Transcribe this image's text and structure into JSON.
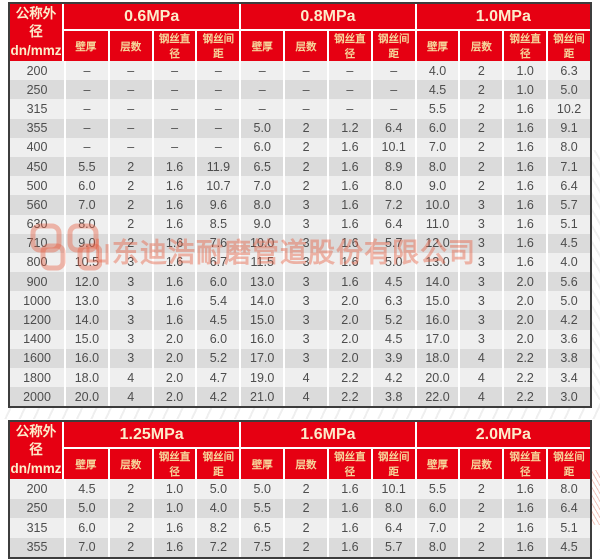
{
  "page": {
    "watermark_text": "山东迪浩耐磨管道股份有限公司",
    "colors": {
      "header_red": "#e60012",
      "header_text_cream": "#fceccb",
      "subheader_text_gold": "#f6d49a",
      "row_light": "#efefef",
      "row_dark": "#dbdbdb",
      "cell_text": "#4d4d4d",
      "watermark_red": "#e85a3c"
    }
  },
  "tables": [
    {
      "corner": {
        "line1": "公称外径",
        "line2": "dn/mmz"
      },
      "groups": [
        {
          "label": "0.6MPa",
          "subcolumns": [
            "壁厚",
            "层数",
            "钢丝直径",
            "钢丝间距"
          ]
        },
        {
          "label": "0.8MPa",
          "subcolumns": [
            "壁厚",
            "层数",
            "钢丝直径",
            "钢丝间距"
          ]
        },
        {
          "label": "1.0MPa",
          "subcolumns": [
            "壁厚",
            "层数",
            "钢丝直径",
            "钢丝间距"
          ]
        }
      ],
      "rows": [
        {
          "dn": "200",
          "values": [
            "–",
            "–",
            "–",
            "–",
            "–",
            "–",
            "–",
            "–",
            "4.0",
            "2",
            "1.0",
            "6.3"
          ]
        },
        {
          "dn": "250",
          "values": [
            "–",
            "–",
            "–",
            "–",
            "–",
            "–",
            "–",
            "–",
            "4.5",
            "2",
            "1.0",
            "5.0"
          ]
        },
        {
          "dn": "315",
          "values": [
            "–",
            "–",
            "–",
            "–",
            "–",
            "–",
            "–",
            "–",
            "5.5",
            "2",
            "1.6",
            "10.2"
          ]
        },
        {
          "dn": "355",
          "values": [
            "–",
            "–",
            "–",
            "–",
            "5.0",
            "2",
            "1.2",
            "6.4",
            "6.0",
            "2",
            "1.6",
            "9.1"
          ]
        },
        {
          "dn": "400",
          "values": [
            "–",
            "–",
            "–",
            "–",
            "6.0",
            "2",
            "1.6",
            "10.1",
            "7.0",
            "2",
            "1.6",
            "8.0"
          ]
        },
        {
          "dn": "450",
          "values": [
            "5.5",
            "2",
            "1.6",
            "11.9",
            "6.5",
            "2",
            "1.6",
            "8.9",
            "8.0",
            "2",
            "1.6",
            "7.1"
          ]
        },
        {
          "dn": "500",
          "values": [
            "6.0",
            "2",
            "1.6",
            "10.7",
            "7.0",
            "2",
            "1.6",
            "8.0",
            "9.0",
            "2",
            "1.6",
            "6.4"
          ]
        },
        {
          "dn": "560",
          "values": [
            "7.0",
            "2",
            "1.6",
            "9.6",
            "8.0",
            "3",
            "1.6",
            "7.2",
            "10.0",
            "3",
            "1.6",
            "5.7"
          ]
        },
        {
          "dn": "630",
          "values": [
            "8.0",
            "2",
            "1.6",
            "8.5",
            "9.0",
            "3",
            "1.6",
            "6.4",
            "11.0",
            "3",
            "1.6",
            "5.1"
          ]
        },
        {
          "dn": "710",
          "values": [
            "9.0",
            "2",
            "1.6",
            "7.6",
            "10.0",
            "3",
            "1.6",
            "5.7",
            "12.0",
            "3",
            "1.6",
            "4.5"
          ]
        },
        {
          "dn": "800",
          "values": [
            "10.5",
            "3",
            "1.6",
            "6.7",
            "11.5",
            "3",
            "1.6",
            "5.0",
            "13.0",
            "3",
            "1.6",
            "4.0"
          ]
        },
        {
          "dn": "900",
          "values": [
            "12.0",
            "3",
            "1.6",
            "6.0",
            "13.0",
            "3",
            "1.6",
            "4.5",
            "14.0",
            "3",
            "2.0",
            "5.6"
          ]
        },
        {
          "dn": "1000",
          "values": [
            "13.0",
            "3",
            "1.6",
            "5.4",
            "14.0",
            "3",
            "2.0",
            "6.3",
            "15.0",
            "3",
            "2.0",
            "5.0"
          ]
        },
        {
          "dn": "1200",
          "values": [
            "14.0",
            "3",
            "1.6",
            "4.5",
            "15.0",
            "3",
            "2.0",
            "5.2",
            "16.0",
            "3",
            "2.0",
            "4.2"
          ]
        },
        {
          "dn": "1400",
          "values": [
            "15.0",
            "3",
            "2.0",
            "6.0",
            "16.0",
            "3",
            "2.0",
            "4.5",
            "17.0",
            "3",
            "2.0",
            "3.6"
          ]
        },
        {
          "dn": "1600",
          "values": [
            "16.0",
            "3",
            "2.0",
            "5.2",
            "17.0",
            "3",
            "2.0",
            "3.9",
            "18.0",
            "4",
            "2.2",
            "3.8"
          ]
        },
        {
          "dn": "1800",
          "values": [
            "18.0",
            "4",
            "2.0",
            "4.7",
            "19.0",
            "4",
            "2.2",
            "4.2",
            "20.0",
            "4",
            "2.2",
            "3.4"
          ]
        },
        {
          "dn": "2000",
          "values": [
            "20.0",
            "4",
            "2.0",
            "4.2",
            "21.0",
            "4",
            "2.2",
            "3.8",
            "22.0",
            "4",
            "2.2",
            "3.0"
          ]
        }
      ]
    },
    {
      "corner": {
        "line1": "公称外径",
        "line2": "dn/mmz"
      },
      "groups": [
        {
          "label": "1.25MPa",
          "subcolumns": [
            "壁厚",
            "层数",
            "钢丝直径",
            "钢丝间距"
          ]
        },
        {
          "label": "1.6MPa",
          "subcolumns": [
            "壁厚",
            "层数",
            "钢丝直径",
            "钢丝间距"
          ]
        },
        {
          "label": "2.0MPa",
          "subcolumns": [
            "壁厚",
            "层数",
            "钢丝直径",
            "钢丝间距"
          ]
        }
      ],
      "rows": [
        {
          "dn": "200",
          "values": [
            "4.5",
            "2",
            "1.0",
            "5.0",
            "5.0",
            "2",
            "1.6",
            "10.1",
            "5.5",
            "2",
            "1.6",
            "8.0"
          ]
        },
        {
          "dn": "250",
          "values": [
            "5.0",
            "2",
            "1.0",
            "4.0",
            "5.5",
            "2",
            "1.6",
            "8.0",
            "6.0",
            "2",
            "1.6",
            "6.4"
          ]
        },
        {
          "dn": "315",
          "values": [
            "6.0",
            "2",
            "1.6",
            "8.2",
            "6.5",
            "2",
            "1.6",
            "6.4",
            "7.0",
            "2",
            "1.6",
            "5.1"
          ]
        },
        {
          "dn": "355",
          "values": [
            "7.0",
            "2",
            "1.6",
            "7.2",
            "7.5",
            "2",
            "1.6",
            "5.7",
            "8.0",
            "2",
            "1.6",
            "4.5"
          ]
        }
      ]
    }
  ]
}
